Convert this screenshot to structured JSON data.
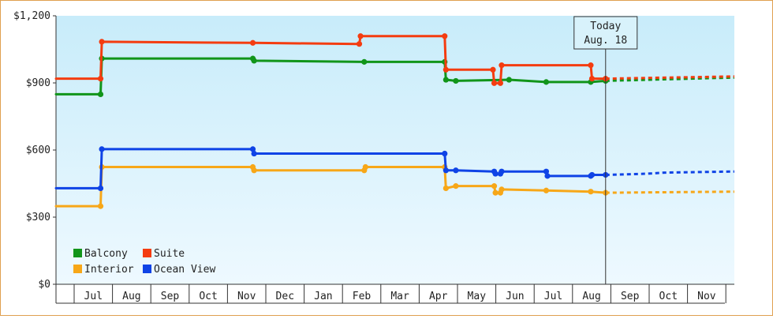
{
  "chart_data": {
    "type": "line",
    "line_style": "step",
    "y_ticks": [
      {
        "value": 0,
        "label": "$0"
      },
      {
        "value": 300,
        "label": "$300"
      },
      {
        "value": 600,
        "label": "$600"
      },
      {
        "value": 900,
        "label": "$900"
      },
      {
        "value": 1200,
        "label": "$1,200"
      }
    ],
    "ylim": [
      0,
      1200
    ],
    "xlim": [
      "2015-06-01",
      "2016-11-30"
    ],
    "x_ticks": [
      "Jul",
      "Aug",
      "Sep",
      "Oct",
      "Nov",
      "Dec",
      "Jan",
      "Feb",
      "Mar",
      "Apr",
      "May",
      "Jun",
      "Jul",
      "Aug",
      "Sep",
      "Oct",
      "Nov"
    ],
    "today": {
      "label": "Today",
      "date_label": "Aug. 18",
      "date": "2016-08-18"
    },
    "legend": {
      "placement": "bottom-left"
    },
    "background": {
      "top": "#c8ecfa",
      "bottom": "#eef9ff"
    },
    "series": [
      {
        "name": "Balcony",
        "color": "#11951a",
        "points": [
          [
            "2015-06-01",
            849
          ],
          [
            "2015-07-07",
            849
          ],
          [
            "2015-07-08",
            1009
          ],
          [
            "2015-11-07",
            1009
          ],
          [
            "2015-11-08",
            999
          ],
          [
            "2016-02-05",
            994
          ],
          [
            "2016-04-10",
            994
          ],
          [
            "2016-04-11",
            914
          ],
          [
            "2016-04-19",
            909
          ],
          [
            "2016-06-01",
            914
          ],
          [
            "2016-07-01",
            904
          ],
          [
            "2016-08-06",
            904
          ],
          [
            "2016-08-18",
            909
          ]
        ],
        "forecast": [
          [
            "2016-08-18",
            909
          ],
          [
            "2016-11-30",
            924
          ]
        ]
      },
      {
        "name": "Suite",
        "color": "#f43c10",
        "points": [
          [
            "2015-06-01",
            919
          ],
          [
            "2015-07-07",
            919
          ],
          [
            "2015-07-08",
            1084
          ],
          [
            "2015-11-07",
            1079
          ],
          [
            "2016-02-01",
            1074
          ],
          [
            "2016-02-02",
            1109
          ],
          [
            "2016-04-10",
            1109
          ],
          [
            "2016-04-11",
            959
          ],
          [
            "2016-05-19",
            959
          ],
          [
            "2016-05-20",
            899
          ],
          [
            "2016-05-25",
            899
          ],
          [
            "2016-05-26",
            979
          ],
          [
            "2016-08-06",
            979
          ],
          [
            "2016-08-07",
            919
          ],
          [
            "2016-08-18",
            919
          ]
        ],
        "forecast": [
          [
            "2016-08-18",
            919
          ],
          [
            "2016-11-30",
            929
          ]
        ]
      },
      {
        "name": "Interior",
        "color": "#f7a718",
        "points": [
          [
            "2015-06-01",
            349
          ],
          [
            "2015-07-07",
            349
          ],
          [
            "2015-07-08",
            524
          ],
          [
            "2015-11-07",
            524
          ],
          [
            "2015-11-08",
            509
          ],
          [
            "2016-02-05",
            509
          ],
          [
            "2016-02-06",
            524
          ],
          [
            "2016-04-10",
            524
          ],
          [
            "2016-04-11",
            429
          ],
          [
            "2016-04-19",
            439
          ],
          [
            "2016-05-20",
            439
          ],
          [
            "2016-05-21",
            409
          ],
          [
            "2016-05-25",
            409
          ],
          [
            "2016-05-26",
            424
          ],
          [
            "2016-07-01",
            419
          ],
          [
            "2016-08-06",
            414
          ],
          [
            "2016-08-18",
            409
          ]
        ],
        "forecast": [
          [
            "2016-08-18",
            409
          ],
          [
            "2016-11-30",
            414
          ]
        ]
      },
      {
        "name": "Ocean View",
        "color": "#0f43e6",
        "points": [
          [
            "2015-06-01",
            429
          ],
          [
            "2015-07-07",
            429
          ],
          [
            "2015-07-08",
            604
          ],
          [
            "2015-11-07",
            604
          ],
          [
            "2015-11-08",
            584
          ],
          [
            "2016-04-10",
            584
          ],
          [
            "2016-04-11",
            509
          ],
          [
            "2016-04-19",
            509
          ],
          [
            "2016-05-20",
            504
          ],
          [
            "2016-05-21",
            494
          ],
          [
            "2016-05-25",
            494
          ],
          [
            "2016-05-26",
            504
          ],
          [
            "2016-07-01",
            504
          ],
          [
            "2016-07-02",
            484
          ],
          [
            "2016-08-06",
            484
          ],
          [
            "2016-08-07",
            489
          ],
          [
            "2016-08-18",
            489
          ]
        ],
        "forecast": [
          [
            "2016-08-18",
            489
          ],
          [
            "2016-09-20",
            494
          ],
          [
            "2016-10-05",
            499
          ],
          [
            "2016-11-30",
            504
          ]
        ]
      }
    ]
  }
}
